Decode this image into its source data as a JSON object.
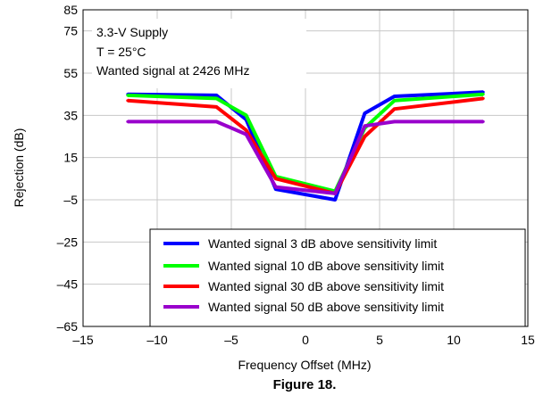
{
  "chart_data": {
    "type": "line",
    "title": "",
    "xlabel": "Frequency Offset (MHz)",
    "ylabel": "Rejection (dB)",
    "xlim": [
      -15,
      15
    ],
    "ylim": [
      -65,
      85
    ],
    "x_ticks": [
      "–15",
      "–10",
      "–5",
      "0",
      "5",
      "10",
      "15"
    ],
    "x_tick_values": [
      -15,
      -10,
      -5,
      0,
      5,
      10,
      15
    ],
    "y_ticks": [
      "85",
      "75",
      "55",
      "35",
      "15",
      "–5",
      "–25",
      "–45",
      "–65"
    ],
    "y_tick_values": [
      85,
      75,
      55,
      35,
      15,
      -5,
      -25,
      -45,
      -65
    ],
    "grid": true,
    "legend_position": "bottom-right",
    "annotation_lines": [
      "3.3-V Supply",
      "T = 25°C",
      "Wanted signal at 2426 MHz"
    ],
    "caption": "Figure 18.",
    "series": [
      {
        "name": "Wanted signal 3 dB above sensitivity limit",
        "color": "#0000ff",
        "x": [
          -12,
          -6,
          -4,
          -2,
          2,
          4,
          6,
          12
        ],
        "y": [
          45,
          44.5,
          33,
          0,
          -5,
          36,
          44,
          46
        ]
      },
      {
        "name": "Wanted signal 10 dB above sensitivity limit",
        "color": "#00ff00",
        "x": [
          -12,
          -6,
          -4,
          -2,
          2,
          4,
          6,
          12
        ],
        "y": [
          44.5,
          43,
          35,
          6,
          -1,
          29,
          42,
          45
        ]
      },
      {
        "name": "Wanted signal 30 dB above sensitivity limit",
        "color": "#ff0000",
        "x": [
          -12,
          -6,
          -4,
          -2,
          2,
          4,
          6,
          12
        ],
        "y": [
          42,
          39,
          28,
          5,
          -2,
          25,
          38,
          43
        ]
      },
      {
        "name": "Wanted signal 50 dB above sensitivity limit",
        "color": "#9900cc",
        "x": [
          -12,
          -6,
          -4,
          -2,
          2,
          4,
          6,
          12
        ],
        "y": [
          32,
          32,
          26,
          1,
          -2,
          30,
          32,
          32
        ]
      }
    ]
  }
}
